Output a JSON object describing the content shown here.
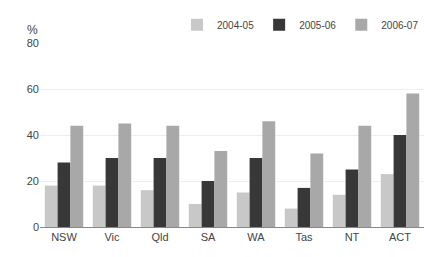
{
  "chart_data": {
    "type": "bar",
    "ylabel": "%",
    "categories": [
      "NSW",
      "Vic",
      "Qld",
      "SA",
      "WA",
      "Tas",
      "NT",
      "ACT"
    ],
    "series": [
      {
        "name": "2004-05",
        "color": "#c8c8c8",
        "values": [
          18,
          18,
          16,
          10,
          15,
          8,
          14,
          23
        ]
      },
      {
        "name": "2005-06",
        "color": "#383838",
        "values": [
          28,
          30,
          30,
          20,
          30,
          17,
          25,
          40
        ]
      },
      {
        "name": "2006-07",
        "color": "#a8a8a8",
        "values": [
          44,
          45,
          44,
          33,
          46,
          32,
          44,
          58
        ]
      }
    ],
    "ylim": [
      0,
      80
    ],
    "yticks": [
      0,
      20,
      40,
      60,
      80
    ],
    "grid": true,
    "legend": "upper right"
  }
}
